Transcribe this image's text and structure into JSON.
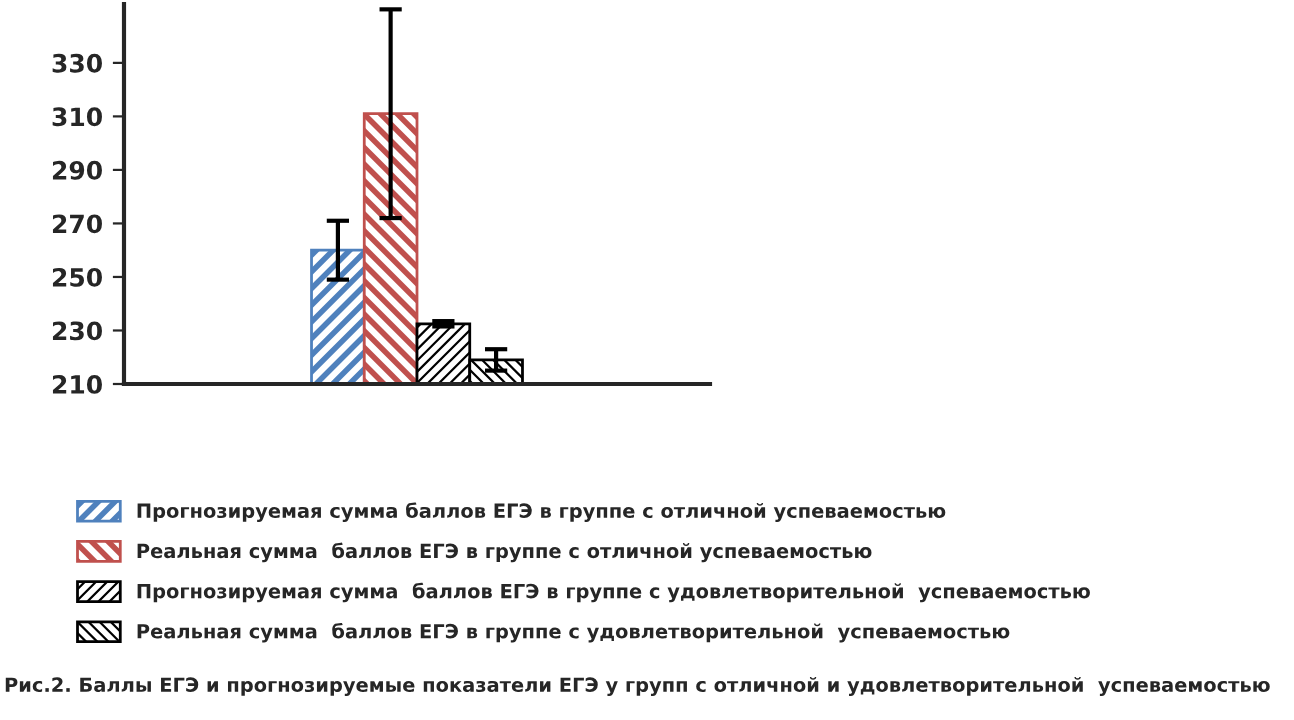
{
  "chart_data": {
    "type": "bar",
    "categories": [
      null
    ],
    "series": [
      {
        "name": "Прогнозируемая сумма баллов ЕГЭ в группе с отличной успеваемостью",
        "color": "#4f81bd",
        "values": [
          260
        ],
        "errors": [
          11
        ]
      },
      {
        "name": "Реальная сумма  баллов ЕГЭ в группе с отличной успеваемостью",
        "color": "#c0504d",
        "values": [
          311
        ],
        "errors": [
          39
        ]
      },
      {
        "name": "Прогнозируемая сумма  баллов ЕГЭ в группе с удовлетворительной  успеваемостью",
        "color": "#000000",
        "values": [
          232.5
        ],
        "errors": [
          1
        ]
      },
      {
        "name": "Реальная сумма  баллов ЕГЭ в группе с удовлетворительной  успеваемостью",
        "color": "#000000",
        "values": [
          219
        ],
        "errors": [
          4
        ]
      }
    ],
    "ylim": [
      210,
      352
    ],
    "yticks": [
      210,
      230,
      250,
      270,
      290,
      310,
      330
    ],
    "grid": false,
    "legend": "bottom",
    "annotations": [
      "Рис.2. Баллы ЕГЭ и прогнозируемые показатели ЕГЭ у групп с отличной и удовлетворительной  успеваемостью"
    ]
  }
}
